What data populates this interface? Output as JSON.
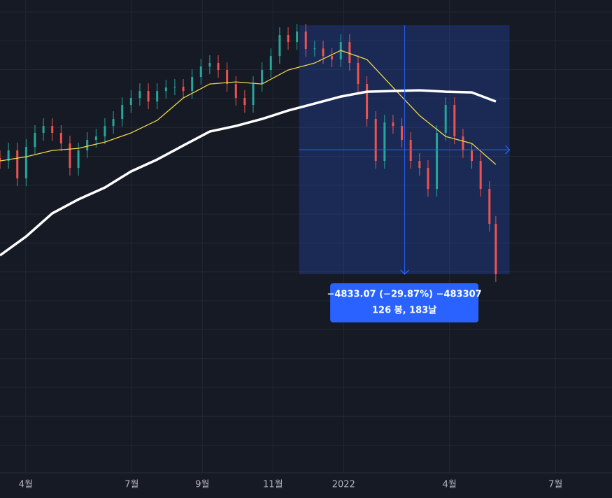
{
  "chart_data": {
    "type": "candlestick",
    "x": [
      -0.73,
      -0.49,
      -0.24,
      0.01,
      0.26,
      0.5,
      0.75,
      1.0,
      1.25,
      1.49,
      1.74,
      1.99,
      2.24,
      2.48,
      2.73,
      2.98,
      3.23,
      3.47,
      3.72,
      3.97,
      4.22,
      4.46,
      4.71,
      4.96,
      5.21,
      5.45,
      5.7,
      5.95,
      6.2,
      6.44,
      6.69,
      6.94,
      7.19,
      7.43,
      7.68,
      7.93,
      8.18,
      8.42,
      8.67,
      8.92,
      9.17,
      9.41,
      9.66,
      9.91,
      10.16,
      10.4,
      10.65,
      10.9,
      11.15,
      11.39,
      11.64,
      11.89,
      12.14,
      12.38,
      12.63,
      12.88,
      13.13,
      13.31
    ],
    "open": [
      13600,
      13545,
      13749,
      13206,
      13817,
      14089,
      14224,
      14089,
      13885,
      13410,
      13749,
      13953,
      14021,
      14224,
      14360,
      14632,
      14768,
      14903,
      14700,
      14903,
      14971,
      14985,
      14903,
      15175,
      15379,
      15447,
      15311,
      15039,
      14768,
      14632,
      15039,
      15311,
      15582,
      15990,
      15854,
      16058,
      15718,
      15730,
      15582,
      15515,
      15854,
      15447,
      15039,
      14360,
      13545,
      14292,
      14224,
      13953,
      13545,
      13410,
      13002,
      14089,
      14632,
      14021,
      13749,
      13545,
      13002,
      12323
    ],
    "high": [
      13750,
      13899,
      13899,
      13967,
      14239,
      14374,
      14374,
      14239,
      14035,
      13899,
      14103,
      14171,
      14374,
      14510,
      14782,
      14918,
      15053,
      15053,
      15053,
      15121,
      15135,
      15135,
      15325,
      15529,
      15597,
      15597,
      15461,
      15189,
      14918,
      15189,
      15461,
      15732,
      16140,
      16140,
      16208,
      16208,
      15880,
      15880,
      15732,
      16004,
      16004,
      15597,
      15189,
      14510,
      14442,
      14442,
      14374,
      14103,
      13695,
      13560,
      14239,
      14782,
      14782,
      14171,
      13899,
      13695,
      13152,
      12473
    ],
    "low": [
      13395,
      13395,
      13056,
      13056,
      13667,
      13939,
      13939,
      13735,
      13260,
      13260,
      13599,
      13803,
      13871,
      14074,
      14210,
      14482,
      14618,
      14550,
      14550,
      14753,
      14821,
      14753,
      14753,
      15025,
      15229,
      15161,
      14889,
      14618,
      14482,
      14482,
      14889,
      15161,
      15432,
      15704,
      15704,
      15568,
      15568,
      15432,
      15365,
      15365,
      15297,
      14889,
      14210,
      13395,
      13395,
      14074,
      13803,
      13395,
      13260,
      12852,
      12852,
      13939,
      13871,
      13599,
      13395,
      12852,
      12173,
      11197
    ],
    "close": [
      13545,
      13749,
      13206,
      13817,
      14089,
      14224,
      14089,
      13885,
      13410,
      13749,
      13953,
      14021,
      14224,
      14360,
      14632,
      14768,
      14903,
      14700,
      14903,
      14971,
      14985,
      14903,
      15175,
      15379,
      15447,
      15311,
      15039,
      14768,
      14632,
      15039,
      15311,
      15582,
      15990,
      15854,
      16058,
      15718,
      15730,
      15582,
      15515,
      15854,
      15447,
      15039,
      14360,
      13545,
      14292,
      14224,
      13953,
      13545,
      13410,
      13002,
      14089,
      14632,
      14021,
      13749,
      13545,
      13002,
      12323,
      11347
    ],
    "up_color": "#26a69a",
    "down_color": "#ef5350",
    "overlays": [
      {
        "x": [
          -0.73,
          0.01,
          0.75,
          1.49,
          2.24,
          2.98,
          3.72,
          4.46,
          5.21,
          5.95,
          6.69,
          7.43,
          8.18,
          8.92,
          9.66,
          10.4,
          11.15,
          11.89,
          12.63,
          13.31
        ],
        "values": [
          13545,
          13627,
          13749,
          13790,
          13912,
          14089,
          14333,
          14768,
          15039,
          15080,
          15039,
          15311,
          15447,
          15691,
          15515,
          14971,
          14428,
          14021,
          13885,
          13478
        ],
        "color": "#f0d64a",
        "width": 1.3
      },
      {
        "x": [
          -0.73,
          0.01,
          0.75,
          1.49,
          2.24,
          2.98,
          3.72,
          4.46,
          5.21,
          5.95,
          6.69,
          7.43,
          8.18,
          8.92,
          9.66,
          10.4,
          11.15,
          11.89,
          12.63,
          13.31
        ],
        "values": [
          11712,
          12079,
          12527,
          12799,
          13029,
          13342,
          13573,
          13844,
          14116,
          14224,
          14360,
          14523,
          14659,
          14795,
          14890,
          14903,
          14917,
          14890,
          14876,
          14700
        ],
        "color": "#ffffff",
        "width": 3.5
      }
    ],
    "xlim": [
      -0.73,
      16.6
    ],
    "ylim": [
      7490,
      16670
    ],
    "xticks": [
      {
        "value": 0,
        "label": "4월"
      },
      {
        "value": 3,
        "label": "7월"
      },
      {
        "value": 5,
        "label": "9월"
      },
      {
        "value": 7,
        "label": "11월"
      },
      {
        "value": 9,
        "label": "2022"
      },
      {
        "value": 12,
        "label": "4월"
      },
      {
        "value": 15,
        "label": "7월"
      }
    ],
    "grid": true,
    "measure": {
      "x_range": [
        7.74,
        13.7
      ],
      "price_range": [
        16180,
        11347
      ],
      "crosshair_x": 10.73,
      "crosshair_y": 13763,
      "color": "#2962ff",
      "label": [
        "−4833.07 (−29.87%) −483307",
        "126 봉, 183날"
      ]
    }
  }
}
